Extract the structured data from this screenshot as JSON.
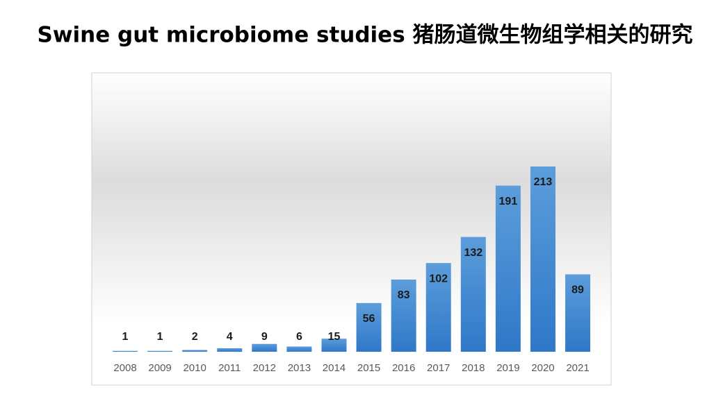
{
  "chart_data": {
    "type": "bar",
    "title": "Swine gut microbiome studies 猪肠道微生物组学相关的研究",
    "categories": [
      "2008",
      "2009",
      "2010",
      "2011",
      "2012",
      "2013",
      "2014",
      "2015",
      "2016",
      "2017",
      "2018",
      "2019",
      "2020",
      "2021"
    ],
    "values": [
      1,
      1,
      2,
      4,
      9,
      6,
      15,
      56,
      83,
      102,
      132,
      191,
      213,
      89
    ],
    "color": "#3d85d1"
  }
}
